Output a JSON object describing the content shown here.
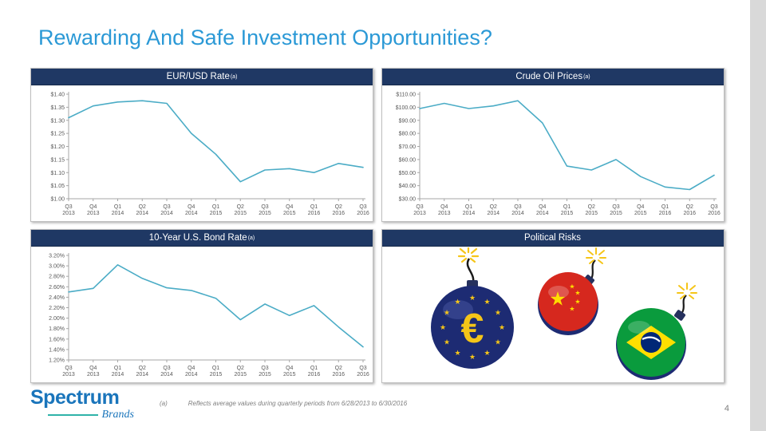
{
  "slide": {
    "title": "Rewarding And Safe Investment Opportunities?",
    "page_number": "4",
    "footnote": {
      "marker": "(a)",
      "text": "Reflects average values during quarterly periods from 6/28/2013 to 6/30/2016"
    },
    "logo": {
      "word1": "Spectrum",
      "word2": "Brands"
    }
  },
  "colors": {
    "title": "#2B99D6",
    "header_bg": "#1F3864",
    "line": "#4BACC6",
    "axis": "#A6A6A6",
    "tick_text": "#595959",
    "logo_blue": "#1A75BB",
    "logo_teal": "#2FB3A9"
  },
  "panels": [
    {
      "title": "EUR/USD  Rate",
      "sup": "(a)"
    },
    {
      "title": "Crude Oil Prices",
      "sup": "(a)"
    },
    {
      "title": "10-Year U.S.  Bond Rate",
      "sup": "(a)"
    },
    {
      "title": "Political Risks",
      "sup": ""
    }
  ],
  "chart_data": [
    {
      "type": "line",
      "title": "EUR/USD Rate (a)",
      "categories": [
        "Q3 2013",
        "Q4 2013",
        "Q1 2014",
        "Q2 2014",
        "Q3 2014",
        "Q4 2014",
        "Q1 2015",
        "Q2 2015",
        "Q3 2015",
        "Q4 2015",
        "Q1 2016",
        "Q2 2016",
        "Q3 2016"
      ],
      "values": [
        1.31,
        1.355,
        1.37,
        1.375,
        1.365,
        1.25,
        1.17,
        1.065,
        1.11,
        1.115,
        1.1,
        1.135,
        1.12
      ],
      "ylim": [
        1.0,
        1.4
      ],
      "yticks": [
        {
          "v": 1.0,
          "label": "$1.00"
        },
        {
          "v": 1.05,
          "label": "$1.05"
        },
        {
          "v": 1.1,
          "label": "$1.10"
        },
        {
          "v": 1.15,
          "label": "$1.15"
        },
        {
          "v": 1.2,
          "label": "$1.20"
        },
        {
          "v": 1.25,
          "label": "$1.25"
        },
        {
          "v": 1.3,
          "label": "$1.30"
        },
        {
          "v": 1.35,
          "label": "$1.35"
        },
        {
          "v": 1.4,
          "label": "$1.40"
        }
      ],
      "legend": "none",
      "grid": false
    },
    {
      "type": "line",
      "title": "Crude Oil Prices (a)",
      "categories": [
        "Q3 2013",
        "Q4 2013",
        "Q1 2014",
        "Q2 2014",
        "Q3 2014",
        "Q4 2014",
        "Q1 2015",
        "Q2 2015",
        "Q3 2015",
        "Q4 2015",
        "Q1 2016",
        "Q2 2016",
        "Q3 2016"
      ],
      "values": [
        99,
        103,
        99,
        101,
        105,
        88,
        55,
        52,
        60,
        47,
        39,
        37,
        48
      ],
      "ylim": [
        30,
        110
      ],
      "yticks": [
        {
          "v": 30,
          "label": "$30.00"
        },
        {
          "v": 40,
          "label": "$40.00"
        },
        {
          "v": 50,
          "label": "$50.00"
        },
        {
          "v": 60,
          "label": "$60.00"
        },
        {
          "v": 70,
          "label": "$70.00"
        },
        {
          "v": 80,
          "label": "$80.00"
        },
        {
          "v": 90,
          "label": "$90.00"
        },
        {
          "v": 100,
          "label": "$100.00"
        },
        {
          "v": 110,
          "label": "$110.00"
        }
      ],
      "legend": "none",
      "grid": false
    },
    {
      "type": "line",
      "title": "10-Year U.S. Bond Rate (a)",
      "categories": [
        "Q3 2013",
        "Q4 2013",
        "Q1 2014",
        "Q2 2014",
        "Q3 2014",
        "Q4 2014",
        "Q1 2015",
        "Q2 2015",
        "Q3 2015",
        "Q4 2015",
        "Q1 2016",
        "Q2 2016",
        "Q3 2016"
      ],
      "values": [
        2.5,
        2.57,
        3.02,
        2.76,
        2.58,
        2.53,
        2.38,
        1.97,
        2.27,
        2.05,
        2.24,
        1.83,
        1.45
      ],
      "ylim": [
        1.2,
        3.2
      ],
      "yticks": [
        {
          "v": 1.2,
          "label": "1.20%"
        },
        {
          "v": 1.4,
          "label": "1.40%"
        },
        {
          "v": 1.6,
          "label": "1.60%"
        },
        {
          "v": 1.8,
          "label": "1.80%"
        },
        {
          "v": 2.0,
          "label": "2.00%"
        },
        {
          "v": 2.2,
          "label": "2.20%"
        },
        {
          "v": 2.4,
          "label": "2.40%"
        },
        {
          "v": 2.6,
          "label": "2.60%"
        },
        {
          "v": 2.8,
          "label": "2.80%"
        },
        {
          "v": 3.0,
          "label": "3.00%"
        },
        {
          "v": 3.2,
          "label": "3.20%"
        }
      ],
      "legend": "none",
      "grid": false
    }
  ],
  "political": {
    "bombs": [
      "eu-flag-bomb",
      "china-flag-bomb",
      "brazil-flag-bomb"
    ]
  }
}
